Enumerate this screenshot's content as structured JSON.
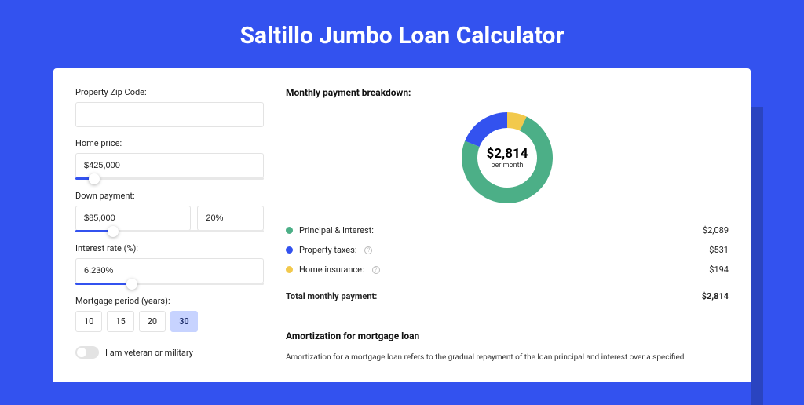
{
  "page": {
    "title": "Saltillo Jumbo Loan Calculator",
    "background_color": "#3352ef",
    "card_color": "#ffffff"
  },
  "form": {
    "zip": {
      "label": "Property Zip Code:",
      "value": ""
    },
    "home_price": {
      "label": "Home price:",
      "value": "$425,000",
      "slider_pct": 10
    },
    "down_payment": {
      "label": "Down payment:",
      "amount": "$85,000",
      "percent": "20%",
      "slider_pct": 20
    },
    "interest": {
      "label": "Interest rate (%):",
      "value": "6.230%",
      "slider_pct": 30
    },
    "period": {
      "label": "Mortgage period (years):",
      "options": [
        "10",
        "15",
        "20",
        "30"
      ],
      "selected": "30"
    },
    "veteran": {
      "label": "I am veteran or military",
      "checked": false
    }
  },
  "breakdown": {
    "title": "Monthly payment breakdown:",
    "donut": {
      "amount": "$2,814",
      "sub": "per month",
      "segments": [
        {
          "name": "principal_interest",
          "value": 2089,
          "pct": 74,
          "color": "#4caf87"
        },
        {
          "name": "property_taxes",
          "value": 531,
          "pct": 19,
          "color": "#3352ef"
        },
        {
          "name": "home_insurance",
          "value": 194,
          "pct": 7,
          "color": "#f2c94c"
        }
      ]
    },
    "rows": [
      {
        "label": "Principal & Interest:",
        "color": "#4caf87",
        "amount": "$2,089",
        "info": false
      },
      {
        "label": "Property taxes:",
        "color": "#3352ef",
        "amount": "$531",
        "info": true
      },
      {
        "label": "Home insurance:",
        "color": "#f2c94c",
        "amount": "$194",
        "info": true
      }
    ],
    "total": {
      "label": "Total monthly payment:",
      "amount": "$2,814"
    }
  },
  "amortization": {
    "title": "Amortization for mortgage loan",
    "text": "Amortization for a mortgage loan refers to the gradual repayment of the loan principal and interest over a specified"
  }
}
